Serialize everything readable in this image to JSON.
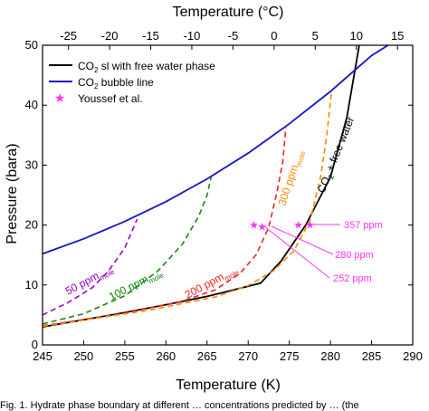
{
  "chart_data": {
    "type": "line",
    "xlabel": "Temperature (K)",
    "x2label": "Temperature (°C)",
    "ylabel": "Pressure (bara)",
    "xlim": [
      245,
      290
    ],
    "ylim": [
      0,
      50
    ],
    "x2lim": [
      -28.15,
      16.85
    ],
    "xticks": [
      245,
      250,
      255,
      260,
      265,
      270,
      275,
      280,
      285,
      290
    ],
    "x2ticks": [
      -25,
      -20,
      -15,
      -10,
      -5,
      0,
      5,
      10,
      15
    ],
    "yticks": [
      0,
      10,
      20,
      30,
      40,
      50
    ],
    "legend_position": "top-left",
    "series": [
      {
        "name": "CO₂ sl with free water phase",
        "color": "#000000",
        "style": "solid",
        "points": [
          [
            245,
            3.0
          ],
          [
            250,
            4.2
          ],
          [
            255,
            5.4
          ],
          [
            260,
            6.7
          ],
          [
            265,
            8.1
          ],
          [
            268,
            9.1
          ],
          [
            271.5,
            10.3
          ],
          [
            274,
            14.0
          ],
          [
            277,
            20.0
          ],
          [
            280,
            28.0
          ],
          [
            282,
            38.0
          ],
          [
            283.5,
            50
          ]
        ]
      },
      {
        "name": "CO₂ bubble line",
        "color": "#1414c8",
        "style": "solid",
        "points": [
          [
            245,
            15.2
          ],
          [
            250,
            17.7
          ],
          [
            255,
            20.6
          ],
          [
            260,
            23.9
          ],
          [
            265,
            27.7
          ],
          [
            270,
            32.0
          ],
          [
            275,
            36.9
          ],
          [
            280,
            42.3
          ],
          [
            285,
            48.3
          ],
          [
            287,
            50
          ]
        ]
      },
      {
        "name": "Youssef et al.",
        "color": "#ff33ff",
        "style": "markers",
        "marker": "star",
        "points": [
          [
            270.7,
            20.0
          ],
          [
            271.7,
            19.7
          ],
          [
            276.1,
            20.0
          ],
          [
            277.5,
            20.0
          ]
        ]
      },
      {
        "name": "50 ppm",
        "color": "#9900cc",
        "style": "dashed",
        "points": [
          [
            245,
            5.0
          ],
          [
            248,
            7.0
          ],
          [
            251,
            9.5
          ],
          [
            253,
            12.3
          ],
          [
            255,
            16.2
          ],
          [
            256.5,
            21.0
          ]
        ]
      },
      {
        "name": "100 ppm",
        "color": "#118811",
        "style": "dashed",
        "points": [
          [
            245,
            3.5
          ],
          [
            250,
            5.2
          ],
          [
            255,
            8.2
          ],
          [
            259,
            12.3
          ],
          [
            262,
            16.8
          ],
          [
            264,
            21.5
          ],
          [
            265,
            25.0
          ],
          [
            265.5,
            28.0
          ]
        ]
      },
      {
        "name": "200 ppm",
        "color": "#ee2222",
        "style": "dashed",
        "points": [
          [
            245,
            3.2
          ],
          [
            255,
            5.3
          ],
          [
            262,
            7.3
          ],
          [
            266,
            9.2
          ],
          [
            269,
            11.9
          ],
          [
            271,
            15.1
          ],
          [
            272.5,
            19.6
          ],
          [
            273.5,
            25.5
          ],
          [
            274.2,
            30.5
          ],
          [
            274.6,
            36.5
          ]
        ]
      },
      {
        "name": "300 ppm",
        "color": "#ff8800",
        "style": "dashed",
        "points": [
          [
            245,
            3.1
          ],
          [
            258,
            5.8
          ],
          [
            266,
            8.0
          ],
          [
            270,
            9.9
          ],
          [
            273,
            12.3
          ],
          [
            275.5,
            15.6
          ],
          [
            277.5,
            20.7
          ],
          [
            278.8,
            28.0
          ],
          [
            279.6,
            35.5
          ],
          [
            280.1,
            42.0
          ]
        ]
      }
    ],
    "annotations": {
      "sl_label": "CO2 + free water",
      "label_50": "50 ppm",
      "label_100": "100 ppm",
      "label_200": "200 ppm",
      "label_300": "300 ppm",
      "subscript_mole": "mole",
      "sub_2": "2",
      "co2_prefix": "CO",
      "plus_fw": " + free water",
      "ppm357": "357 ppm",
      "ppm280": "280 ppm",
      "ppm252": "252 ppm"
    },
    "legend": {
      "sl_prefix": "CO",
      "sl_sub": "2",
      "sl_rest": " sl with free water phase",
      "bub_prefix": "CO",
      "bub_sub": "2",
      "bub_rest": " bubble line",
      "youssef": "Youssef et al."
    }
  },
  "caption_fragment": "Fig. 1. Hydrate phase boundary at different … concentrations predicted by … (the"
}
